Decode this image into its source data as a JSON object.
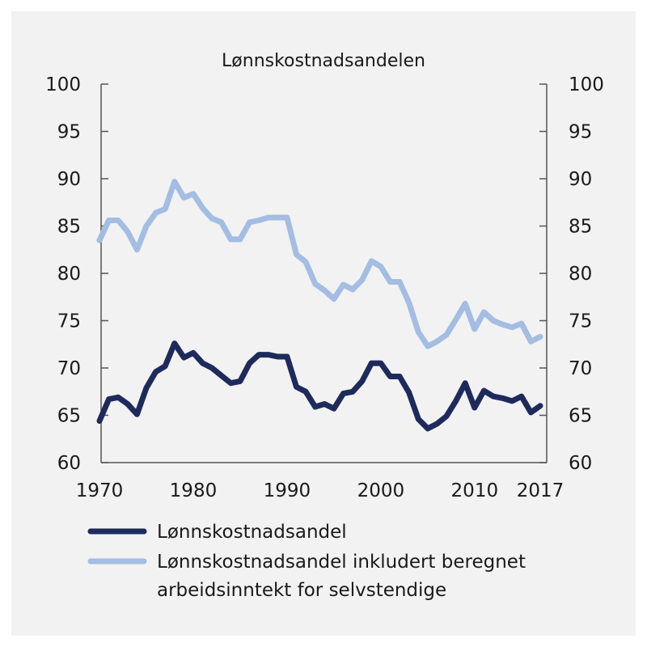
{
  "chart_data": {
    "type": "line",
    "title": "Lønnskostnadsandelen",
    "xlabel": "",
    "ylabel": "",
    "ylabel_right": "",
    "xlim": [
      1970,
      2017
    ],
    "ylim": [
      60,
      100
    ],
    "ylim_right": [
      60,
      100
    ],
    "x_ticks": [
      "1970",
      "1980",
      "1990",
      "2000",
      "2010",
      "2017"
    ],
    "x_tick_values": [
      1970,
      1980,
      1990,
      2000,
      2010,
      2017
    ],
    "y_ticks": [
      "60",
      "65",
      "70",
      "75",
      "80",
      "85",
      "90",
      "95",
      "100"
    ],
    "y_tick_values": [
      60,
      65,
      70,
      75,
      80,
      85,
      90,
      95,
      100
    ],
    "grid": false,
    "legend_position": "bottom",
    "x": [
      1970,
      1971,
      1972,
      1973,
      1974,
      1975,
      1976,
      1977,
      1978,
      1979,
      1980,
      1981,
      1982,
      1983,
      1984,
      1985,
      1986,
      1987,
      1988,
      1989,
      1990,
      1991,
      1992,
      1993,
      1994,
      1995,
      1996,
      1997,
      1998,
      1999,
      2000,
      2001,
      2002,
      2003,
      2004,
      2005,
      2006,
      2007,
      2008,
      2009,
      2010,
      2011,
      2012,
      2013,
      2014,
      2015,
      2016,
      2017
    ],
    "series": [
      {
        "name": "Lønnskostnadsandel",
        "color": "#1f2a5c",
        "values": [
          64.4,
          66.7,
          66.9,
          66.2,
          65.1,
          67.9,
          69.6,
          70.2,
          72.6,
          71.1,
          71.6,
          70.5,
          70.0,
          69.2,
          68.4,
          68.6,
          70.5,
          71.4,
          71.4,
          71.2,
          71.2,
          68.0,
          67.5,
          65.9,
          66.2,
          65.7,
          67.3,
          67.5,
          68.6,
          70.5,
          70.5,
          69.1,
          69.1,
          67.4,
          64.6,
          63.6,
          64.1,
          64.9,
          66.5,
          68.4,
          65.8,
          67.6,
          67.0,
          66.8,
          66.5,
          67.0,
          65.3,
          66.0
        ]
      },
      {
        "name": "Lønnskostnadsandel inkludert beregnet arbeidsinntekt for selvstendige",
        "legend_lines": [
          "Lønnskostnadsandel inkludert beregnet",
          "arbeidsinntekt for selvstendige"
        ],
        "color": "#a3bde3",
        "values": [
          83.5,
          85.6,
          85.6,
          84.4,
          82.5,
          85.0,
          86.4,
          86.8,
          89.7,
          88.0,
          88.4,
          86.9,
          85.8,
          85.4,
          83.6,
          83.6,
          85.4,
          85.6,
          85.9,
          85.9,
          85.9,
          82.0,
          81.2,
          78.9,
          78.2,
          77.3,
          78.8,
          78.3,
          79.3,
          81.3,
          80.7,
          79.1,
          79.1,
          76.9,
          73.8,
          72.3,
          72.8,
          73.5,
          75.1,
          76.8,
          74.1,
          75.9,
          75.0,
          74.6,
          74.3,
          74.7,
          72.8,
          73.3
        ]
      }
    ]
  }
}
